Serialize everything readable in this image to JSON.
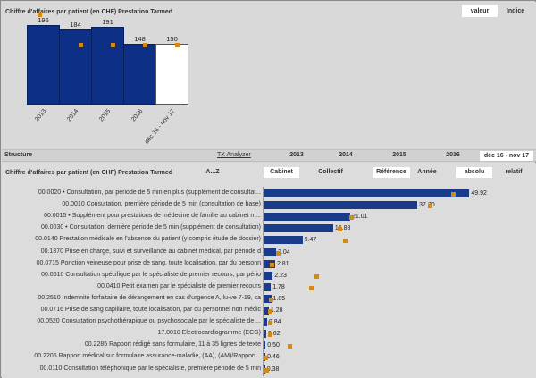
{
  "top": {
    "title": "Chiffre d'affaires par patient (en CHF) Prestation Tarmed",
    "toggle": [
      "valeur",
      "Indice"
    ],
    "chart_data": {
      "type": "bar",
      "categories": [
        "2013",
        "2014",
        "2015",
        "2016",
        "déc 16 - nov 17"
      ],
      "values": [
        196,
        184,
        191,
        148,
        150
      ],
      "highlight_last": true,
      "ylim": [
        0,
        230
      ],
      "colors": {
        "bar": "#0d2f86",
        "last": "#ffffff",
        "marker": "#d08a1c"
      }
    }
  },
  "structure": {
    "label": "Structure",
    "link": "TX Analyzer",
    "years": [
      "2013",
      "2014",
      "2015",
      "2016",
      "déc 16 - nov 17"
    ],
    "selected": "déc 16 - nov 17"
  },
  "bottom": {
    "title": "Chiffre d'affaires par patient (en CHF) Prestation Tarmed",
    "sort_button": "A...Z",
    "scope": [
      "Cabinet",
      "Collectif"
    ],
    "ref": [
      "Référence",
      "Année"
    ],
    "mode": [
      "absolu",
      "relatif"
    ],
    "chart_data": {
      "type": "bar",
      "orientation": "horizontal",
      "xlim": [
        0,
        52
      ],
      "categories": [
        "00.0020 • Consultation, par période de 5 min en plus (supplément de consultat...",
        "00.0010 Consultation, première période de 5 min (consultation de base)",
        "00.0015 • Supplément pour prestations de médecine de famille au cabinet m...",
        "00.0030 • Consultation, dernière période de 5 min (supplément de consultation)",
        "00.0140 Prestation médicale en l'absence du patient (y compris étude de dossier)",
        "00.1370 Prise en charge, suivi et surveillance au cabinet médical, par période d",
        "00.0715 Ponction veineuse pour prise de sang, toute localisation, par du personn",
        "00.0510 Consultation spécifique par le spécialiste de premier recours, par pério",
        "00.0410 Petit examen par le spécialiste de premier recours",
        "00.2510 Indemnité forfaitaire de dérangement en cas d'urgence A, lu-ve 7-19, sa",
        "00.0716 Prise de sang capillaire, toute localisation, par du personnel non médic",
        "00.0520 Consultation psychothérapique ou psychosociale par le spécialiste de ...",
        "17.0010 Electrocardiogramme (ECG)",
        "00.2285 Rapport rédigé sans formulaire, 11 à 35 lignes de texte",
        "00.2205 Rapport médical sur formulaire assurance-maladie, (AA), (AM)/Rapport...",
        "00.0110 Consultation téléphonique par le spécialiste, première période de 5 min"
      ],
      "values": [
        49.92,
        37.3,
        21.01,
        16.88,
        9.47,
        3.04,
        2.81,
        2.23,
        1.78,
        1.85,
        1.28,
        0.84,
        0.62,
        0.5,
        0.46,
        0.38
      ],
      "value_labels": [
        "49.92",
        "37.30",
        "21.01",
        "16.88",
        "9.47",
        "3.04",
        "2.81",
        "2.23",
        "1.78",
        "1.85",
        "1.28",
        "0.84",
        "0.62",
        "0.50",
        "0.46",
        "0.38"
      ],
      "reference": [
        45.8,
        40.1,
        21.1,
        18.2,
        19.5,
        3.2,
        1.8,
        12.5,
        11.3,
        1.6,
        1.3,
        1.2,
        1.2,
        6.1,
        0.3,
        0.4
      ],
      "colors": {
        "bar": "#1a3a8a",
        "marker": "#d08a1c"
      }
    }
  }
}
